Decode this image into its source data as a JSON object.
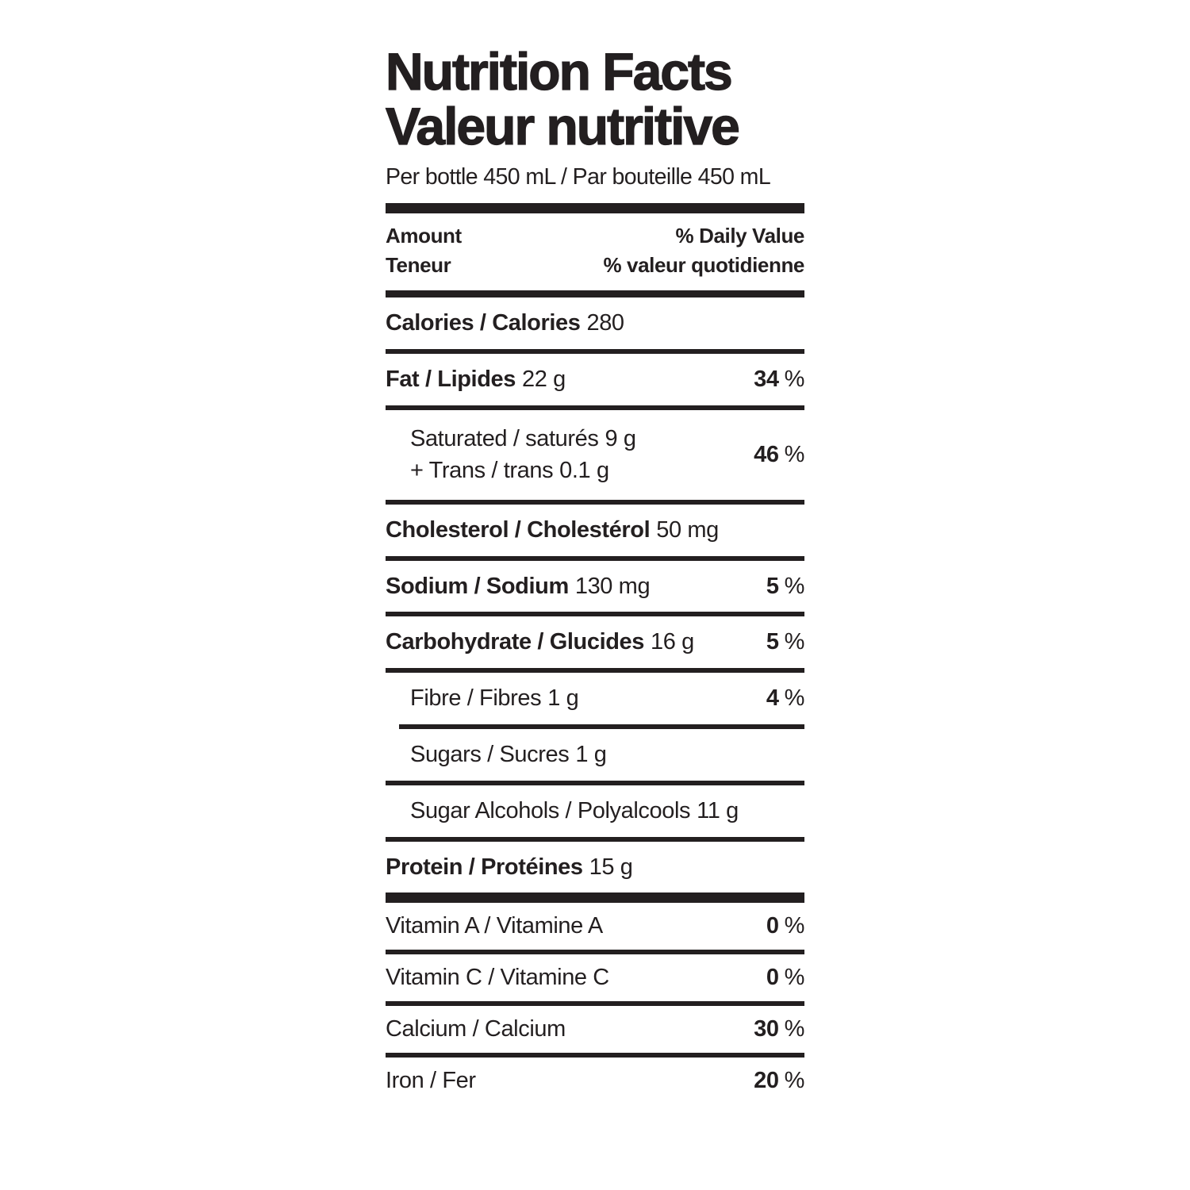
{
  "label": {
    "title_en": "Nutrition Facts",
    "title_fr": "Valeur nutritive",
    "serving": "Per bottle 450 mL / Par bouteille 450 mL",
    "header": {
      "amount_en": "Amount",
      "amount_fr": "Teneur",
      "dv_en": "% Daily Value",
      "dv_fr": "% valeur quotidienne"
    },
    "rows": [
      {
        "name": "Calories / Calories",
        "amount": "280"
      },
      {
        "name": "Fat / Lipides",
        "amount": "22 g",
        "dv": "34",
        "dv_unit": "%"
      },
      {
        "lines": [
          {
            "name": "Saturated / saturés",
            "amount": "9 g"
          },
          {
            "name": "+ Trans / trans",
            "amount": "0.1 g"
          }
        ],
        "dv": "46",
        "dv_unit": "%"
      },
      {
        "name": "Cholesterol / Cholestérol",
        "amount": "50 mg"
      },
      {
        "name": "Sodium / Sodium",
        "amount": "130 mg",
        "dv": "5",
        "dv_unit": "%"
      },
      {
        "name": "Carbohydrate / Glucides",
        "amount": "16 g",
        "dv": "5",
        "dv_unit": "%"
      },
      {
        "name": "Fibre / Fibres",
        "amount": "1 g",
        "dv": "4",
        "dv_unit": "%"
      },
      {
        "name": "Sugars / Sucres",
        "amount": "1 g"
      },
      {
        "name": "Sugar Alcohols / Polyalcools",
        "amount": "11 g"
      },
      {
        "name": "Protein / Protéines",
        "amount": "15 g"
      },
      {
        "name": "Vitamin A / Vitamine A",
        "dv": "0",
        "dv_unit": "%"
      },
      {
        "name": "Vitamin C / Vitamine C",
        "dv": "0",
        "dv_unit": "%"
      },
      {
        "name": "Calcium / Calcium",
        "dv": "30",
        "dv_unit": "%"
      },
      {
        "name": "Iron / Fer",
        "dv": "20",
        "dv_unit": "%"
      }
    ],
    "colors": {
      "ink": "#231f20",
      "background": "#ffffff"
    }
  }
}
